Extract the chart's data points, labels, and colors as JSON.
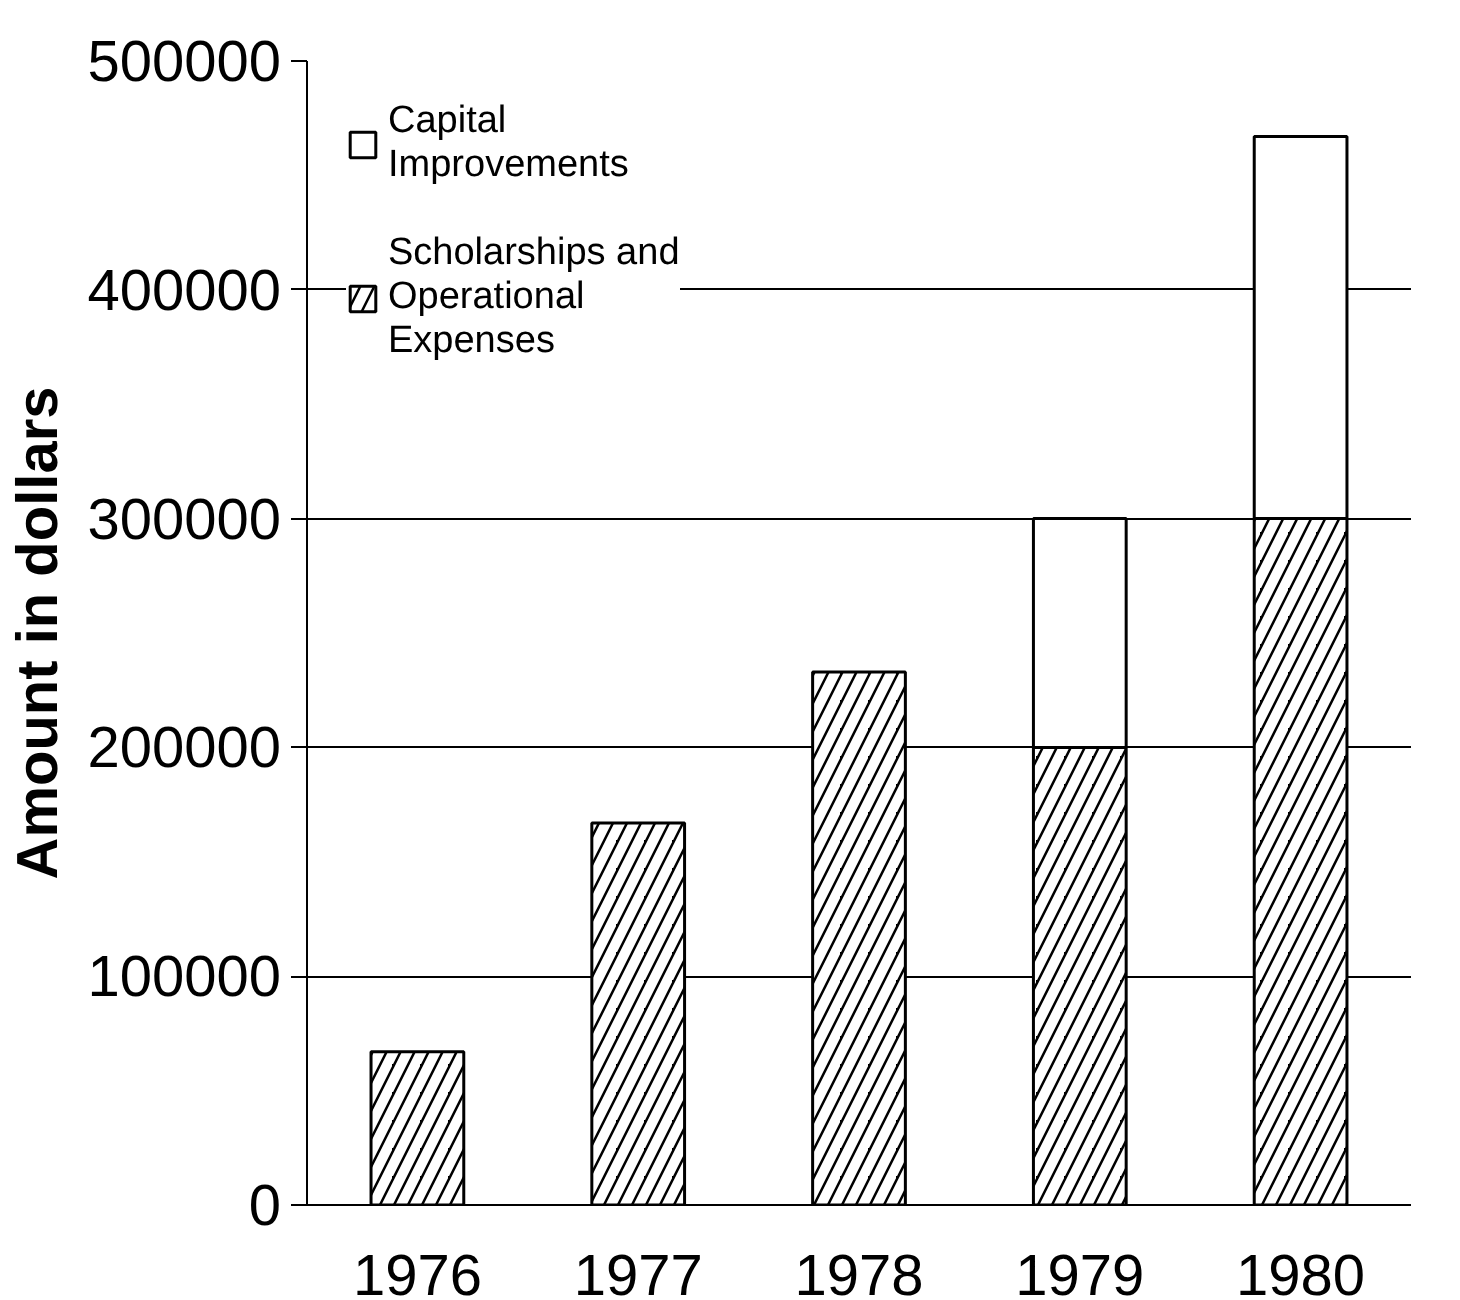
{
  "chart_data": {
    "type": "bar",
    "ylabel": "Amount in dollars",
    "categories": [
      "1976",
      "1977",
      "1978",
      "1979",
      "1980"
    ],
    "stacked": true,
    "series": [
      {
        "name": "Scholarships and Operational Expenses",
        "color": "#000000",
        "values": [
          67000,
          167000,
          233000,
          200000,
          300000
        ]
      },
      {
        "name": "Capital Improvements",
        "color": "#ffffff",
        "values": [
          null,
          null,
          null,
          100000,
          167000
        ]
      }
    ],
    "ylim": [
      0,
      500000
    ],
    "yticks": [
      0,
      100000,
      200000,
      300000,
      400000,
      500000
    ],
    "grid": "y",
    "legend": "top left"
  }
}
